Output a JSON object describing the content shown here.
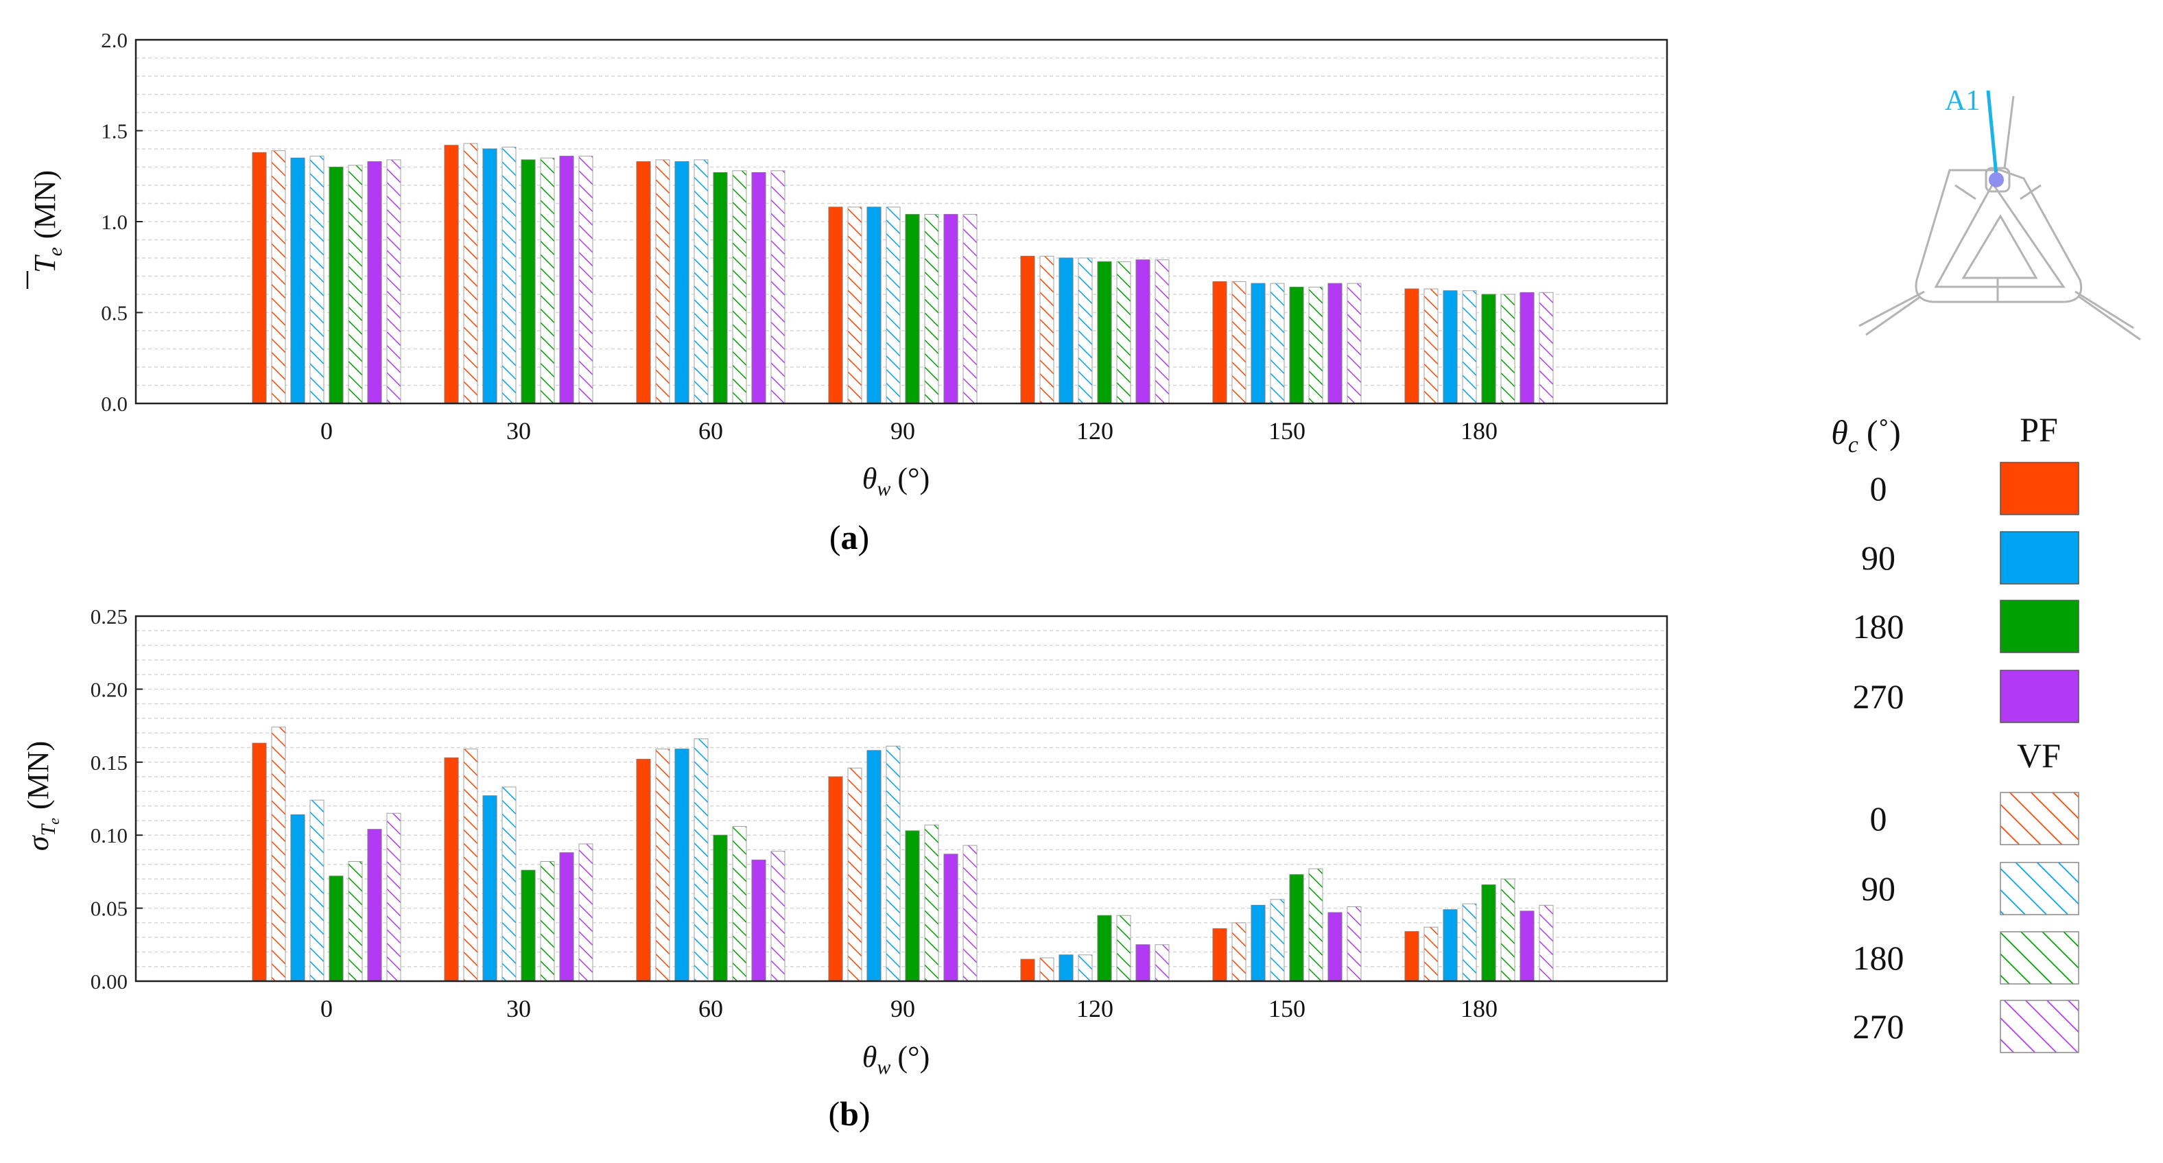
{
  "chart_data": {
    "categories": [
      "0",
      "30",
      "60",
      "90",
      "120",
      "150",
      "180"
    ],
    "series": [
      {
        "name": "PF 0",
        "flow": "PF",
        "theta_c": "0",
        "color": "#FF4500"
      },
      {
        "name": "VF 0",
        "flow": "VF",
        "theta_c": "0",
        "color": "#FF4500"
      },
      {
        "name": "PF 90",
        "flow": "PF",
        "theta_c": "90",
        "color": "#00A2F2"
      },
      {
        "name": "VF 90",
        "flow": "VF",
        "theta_c": "90",
        "color": "#00A2F2"
      },
      {
        "name": "PF 180",
        "flow": "PF",
        "theta_c": "180",
        "color": "#00A000"
      },
      {
        "name": "VF 180",
        "flow": "VF",
        "theta_c": "180",
        "color": "#00A000"
      },
      {
        "name": "PF 270",
        "flow": "PF",
        "theta_c": "270",
        "color": "#B23AF5"
      },
      {
        "name": "VF 270",
        "flow": "VF",
        "theta_c": "270",
        "color": "#B23AF5"
      }
    ],
    "charts": [
      {
        "id": "a",
        "type": "bar",
        "panel_label": "a",
        "ylabel_main": "T",
        "ylabel_sub": "e",
        "ylabel_unit": "(MN)",
        "xlabel_main": "θ",
        "xlabel_sub": "w",
        "xlabel_unit": "(°)",
        "ylim": [
          0,
          2.0
        ],
        "yticks": [
          "0.0",
          "0.5",
          "1.0",
          "1.5",
          "2.0"
        ],
        "values": [
          [
            1.38,
            1.39,
            1.35,
            1.36,
            1.3,
            1.31,
            1.33,
            1.34
          ],
          [
            1.42,
            1.43,
            1.4,
            1.41,
            1.34,
            1.35,
            1.36,
            1.36
          ],
          [
            1.33,
            1.34,
            1.33,
            1.34,
            1.27,
            1.28,
            1.27,
            1.28
          ],
          [
            1.08,
            1.08,
            1.08,
            1.08,
            1.04,
            1.04,
            1.04,
            1.04
          ],
          [
            0.81,
            0.81,
            0.8,
            0.8,
            0.78,
            0.78,
            0.79,
            0.79
          ],
          [
            0.67,
            0.67,
            0.66,
            0.66,
            0.64,
            0.64,
            0.66,
            0.66
          ],
          [
            0.63,
            0.63,
            0.62,
            0.62,
            0.6,
            0.6,
            0.61,
            0.61
          ]
        ]
      },
      {
        "id": "b",
        "type": "bar",
        "panel_label": "b",
        "ylabel_main": "σ",
        "ylabel_sub": "T",
        "ylabel_subsub": "e",
        "ylabel_unit": "(MN)",
        "xlabel_main": "θ",
        "xlabel_sub": "w",
        "xlabel_unit": "(°)",
        "ylim": [
          0,
          0.25
        ],
        "yticks": [
          "0.00",
          "0.05",
          "0.10",
          "0.15",
          "0.20",
          "0.25"
        ],
        "values": [
          [
            0.163,
            0.174,
            0.114,
            0.124,
            0.072,
            0.082,
            0.104,
            0.115
          ],
          [
            0.153,
            0.159,
            0.127,
            0.133,
            0.076,
            0.082,
            0.088,
            0.094
          ],
          [
            0.152,
            0.159,
            0.159,
            0.166,
            0.1,
            0.106,
            0.083,
            0.089
          ],
          [
            0.14,
            0.146,
            0.158,
            0.161,
            0.103,
            0.107,
            0.087,
            0.093
          ],
          [
            0.015,
            0.016,
            0.018,
            0.018,
            0.045,
            0.045,
            0.025,
            0.025
          ],
          [
            0.036,
            0.04,
            0.052,
            0.056,
            0.073,
            0.077,
            0.047,
            0.051
          ],
          [
            0.034,
            0.037,
            0.049,
            0.053,
            0.066,
            0.07,
            0.048,
            0.052
          ]
        ]
      }
    ]
  },
  "legend": {
    "header_main": "θ",
    "header_sub": "c",
    "header_unit": "(˚)",
    "pf_label": "PF",
    "vf_label": "VF",
    "pf_items": [
      "0",
      "90",
      "180",
      "270"
    ],
    "vf_items": [
      "0",
      "90",
      "180",
      "270"
    ]
  },
  "inset": {
    "label": "A1",
    "label_color": "#1BB4E8",
    "line_color": "#1BB4E8",
    "dot_color": "#8F8FF0"
  }
}
